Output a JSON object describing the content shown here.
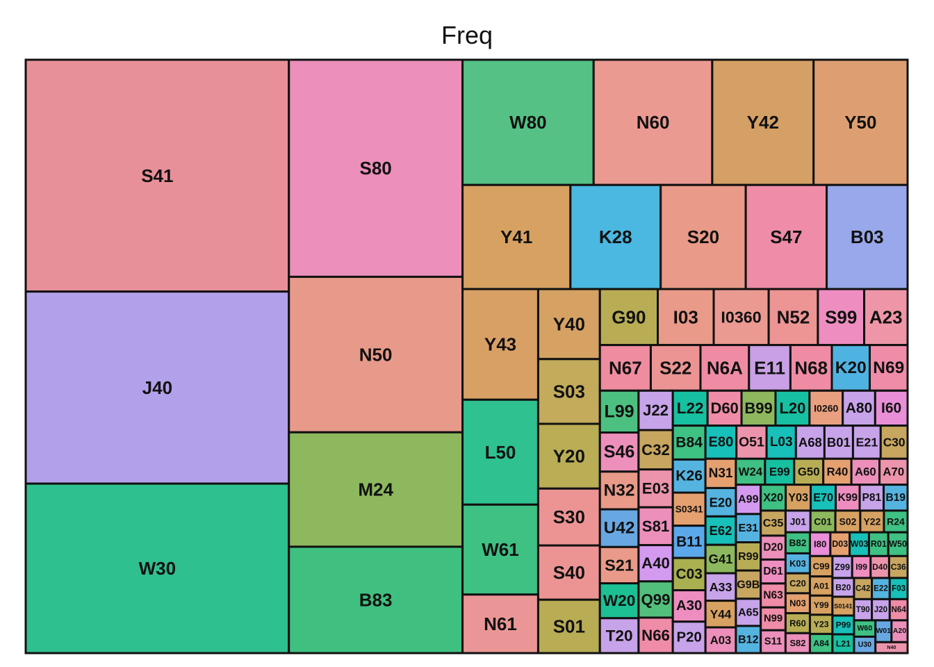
{
  "chart_data": {
    "type": "treemap",
    "title": "Freq",
    "items": [
      {
        "label": "S41",
        "value": 113000,
        "color": "#e8909a"
      },
      {
        "label": "J40",
        "value": 93600,
        "color": "#b3a0ea"
      },
      {
        "label": "W30",
        "value": 82600,
        "color": "#2fc08f"
      },
      {
        "label": "S80",
        "value": 69800,
        "color": "#ec8fba"
      },
      {
        "label": "N50",
        "value": 50000,
        "color": "#e89a8a"
      },
      {
        "label": "M24",
        "value": 36800,
        "color": "#8db85e"
      },
      {
        "label": "B83",
        "value": 34200,
        "color": "#40c080"
      },
      {
        "label": "W80",
        "value": 30400,
        "color": "#55c185"
      },
      {
        "label": "N60",
        "value": 27500,
        "color": "#eb9a92"
      },
      {
        "label": "Y42",
        "value": 23500,
        "color": "#d5a065"
      },
      {
        "label": "Y50",
        "value": 21800,
        "color": "#dd9f72"
      },
      {
        "label": "Y41",
        "value": 20800,
        "color": "#d7a162"
      },
      {
        "label": "K28",
        "value": 17400,
        "color": "#4ab8e0"
      },
      {
        "label": "S20",
        "value": 16400,
        "color": "#e99a88"
      },
      {
        "label": "Y43",
        "value": 15500,
        "color": "#d9a066"
      },
      {
        "label": "S47",
        "value": 15600,
        "color": "#ef8ca8"
      },
      {
        "label": "B03",
        "value": 15600,
        "color": "#98a8ea"
      },
      {
        "label": "L50",
        "value": 14700,
        "color": "#2fc190"
      },
      {
        "label": "W61",
        "value": 12600,
        "color": "#3ec183"
      },
      {
        "label": "N61",
        "value": 8200,
        "color": "#eb9696"
      },
      {
        "label": "Y40",
        "value": 8000,
        "color": "#d5a263"
      },
      {
        "label": "S03",
        "value": 7400,
        "color": "#c3ab5b"
      },
      {
        "label": "Y20",
        "value": 7400,
        "color": "#b9ad55"
      },
      {
        "label": "S30",
        "value": 6500,
        "color": "#ec9494"
      },
      {
        "label": "S01",
        "value": 6100,
        "color": "#b8ad55"
      },
      {
        "label": "S40",
        "value": 6200,
        "color": "#ec9494"
      },
      {
        "label": "G90",
        "value": 6000,
        "color": "#b8ad55"
      },
      {
        "label": "I03",
        "value": 5800,
        "color": "#e99a88"
      },
      {
        "label": "I0360",
        "value": 5700,
        "color": "#eb9a92"
      },
      {
        "label": "N52",
        "value": 5100,
        "color": "#ed9494"
      },
      {
        "label": "S99",
        "value": 4800,
        "color": "#ee8dc0"
      },
      {
        "label": "A23",
        "value": 4500,
        "color": "#ee96a8"
      },
      {
        "label": "S22",
        "value": 4200,
        "color": "#ec9494"
      },
      {
        "label": "N67",
        "value": 4300,
        "color": "#ef8ca0"
      },
      {
        "label": "N6A",
        "value": 4100,
        "color": "#ef8ca4"
      },
      {
        "label": "E11",
        "value": 3500,
        "color": "#c9a0e5"
      },
      {
        "label": "N68",
        "value": 3500,
        "color": "#ef8ca4"
      },
      {
        "label": "K20",
        "value": 3200,
        "color": "#4fb3e2"
      },
      {
        "label": "N69",
        "value": 3200,
        "color": "#ef8ca8"
      },
      {
        "label": "L99",
        "value": 3000,
        "color": "#4cc080"
      },
      {
        "label": "S46",
        "value": 2800,
        "color": "#ec8fba"
      },
      {
        "label": "N32",
        "value": 2700,
        "color": "#e99a88"
      },
      {
        "label": "U42",
        "value": 2700,
        "color": "#68a8e2"
      },
      {
        "label": "S21",
        "value": 2600,
        "color": "#e99a88"
      },
      {
        "label": "W20",
        "value": 2500,
        "color": "#1cc093"
      },
      {
        "label": "T20",
        "value": 2500,
        "color": "#c7a3ea"
      },
      {
        "label": "J22",
        "value": 2500,
        "color": "#c7a3ea"
      },
      {
        "label": "C32",
        "value": 2500,
        "color": "#c7a660"
      },
      {
        "label": "E03",
        "value": 2400,
        "color": "#ec94ac"
      },
      {
        "label": "S81",
        "value": 2400,
        "color": "#ec8fba"
      },
      {
        "label": "A40",
        "value": 2300,
        "color": "#d49af0"
      },
      {
        "label": "Q99",
        "value": 2300,
        "color": "#52c07c"
      },
      {
        "label": "N66",
        "value": 2250,
        "color": "#ef8ca8"
      },
      {
        "label": "L22",
        "value": 2250,
        "color": "#17c0a0"
      },
      {
        "label": "D60",
        "value": 2200,
        "color": "#ef8ca8"
      },
      {
        "label": "B99",
        "value": 2200,
        "color": "#8db85e"
      },
      {
        "label": "L20",
        "value": 2200,
        "color": "#17c0a0"
      },
      {
        "label": "I0260",
        "value": 2150,
        "color": "#e9a080"
      },
      {
        "label": "A80",
        "value": 2100,
        "color": "#c7a3ea"
      },
      {
        "label": "I60",
        "value": 2100,
        "color": "#e88fd8"
      },
      {
        "label": "B84",
        "value": 2050,
        "color": "#3ec183"
      },
      {
        "label": "K26",
        "value": 2000,
        "color": "#55b3e0"
      },
      {
        "label": "S0341",
        "value": 2000,
        "color": "#e5a070"
      },
      {
        "label": "B11",
        "value": 1950,
        "color": "#5ba8ea"
      },
      {
        "label": "C03",
        "value": 1950,
        "color": "#a8b050"
      },
      {
        "label": "A30",
        "value": 1900,
        "color": "#ee8dc0"
      },
      {
        "label": "P20",
        "value": 1900,
        "color": "#c7a3ea"
      },
      {
        "label": "E80",
        "value": 1900,
        "color": "#17c0b8"
      },
      {
        "label": "O51",
        "value": 1850,
        "color": "#ec94ac"
      },
      {
        "label": "L03",
        "value": 1800,
        "color": "#17c0b8"
      },
      {
        "label": "A68",
        "value": 1750,
        "color": "#c7a3ea"
      },
      {
        "label": "B01",
        "value": 1750,
        "color": "#c7a3ea"
      },
      {
        "label": "E21",
        "value": 1700,
        "color": "#c7a3ea"
      },
      {
        "label": "C30",
        "value": 1650,
        "color": "#c7a660"
      },
      {
        "label": "N31",
        "value": 1650,
        "color": "#e5a070"
      },
      {
        "label": "E20",
        "value": 1600,
        "color": "#55b3e0"
      },
      {
        "label": "E62",
        "value": 1600,
        "color": "#17c0b8"
      },
      {
        "label": "G41",
        "value": 1600,
        "color": "#8db85e"
      },
      {
        "label": "A33",
        "value": 1550,
        "color": "#c7a3ea"
      },
      {
        "label": "Y44",
        "value": 1500,
        "color": "#d7a162"
      },
      {
        "label": "A03",
        "value": 1450,
        "color": "#ec8fba"
      },
      {
        "label": "W24",
        "value": 1400,
        "color": "#3ec183"
      },
      {
        "label": "E99",
        "value": 1400,
        "color": "#17c0a0"
      },
      {
        "label": "G50",
        "value": 1400,
        "color": "#b8ad55"
      },
      {
        "label": "R40",
        "value": 1350,
        "color": "#e5a070"
      },
      {
        "label": "A60",
        "value": 1350,
        "color": "#ec8fba"
      },
      {
        "label": "A70",
        "value": 1350,
        "color": "#ec94ac"
      },
      {
        "label": "A99",
        "value": 1350,
        "color": "#d49af0"
      },
      {
        "label": "E31",
        "value": 1300,
        "color": "#55b3e0"
      },
      {
        "label": "R99",
        "value": 1300,
        "color": "#b8ad55"
      },
      {
        "label": "G9B",
        "value": 1300,
        "color": "#c7a660"
      },
      {
        "label": "A65",
        "value": 1250,
        "color": "#c7a3ea"
      },
      {
        "label": "B12",
        "value": 1250,
        "color": "#55b3e0"
      },
      {
        "label": "X20",
        "value": 1200,
        "color": "#3ec183"
      },
      {
        "label": "Y03",
        "value": 1200,
        "color": "#d7a162"
      },
      {
        "label": "E70",
        "value": 1200,
        "color": "#17c0b8"
      },
      {
        "label": "K99",
        "value": 1150,
        "color": "#ee8dc0"
      },
      {
        "label": "P81",
        "value": 1150,
        "color": "#c7a3ea"
      },
      {
        "label": "B19",
        "value": 1150,
        "color": "#55b3e0"
      },
      {
        "label": "C35",
        "value": 1150,
        "color": "#c7a660"
      },
      {
        "label": "D20",
        "value": 1100,
        "color": "#ec8fba"
      },
      {
        "label": "D61",
        "value": 1100,
        "color": "#ee8dc0"
      },
      {
        "label": "N63",
        "value": 1100,
        "color": "#ef8ca8"
      },
      {
        "label": "N99",
        "value": 1050,
        "color": "#ef8ca8"
      },
      {
        "label": "S11",
        "value": 1050,
        "color": "#ec8fba"
      },
      {
        "label": "J01",
        "value": 1000,
        "color": "#c7a3ea"
      },
      {
        "label": "C01",
        "value": 1000,
        "color": "#8db85e"
      },
      {
        "label": "Y22",
        "value": 950,
        "color": "#d7a162"
      },
      {
        "label": "S02",
        "value": 1000,
        "color": "#d7a162"
      },
      {
        "label": "R24",
        "value": 950,
        "color": "#3ec183"
      },
      {
        "label": "B82",
        "value": 950,
        "color": "#3ec183"
      },
      {
        "label": "K03",
        "value": 900,
        "color": "#55b3e0"
      },
      {
        "label": "C20",
        "value": 900,
        "color": "#c7a660"
      },
      {
        "label": "N03",
        "value": 900,
        "color": "#e5a070"
      },
      {
        "label": "R60",
        "value": 900,
        "color": "#b8ad55"
      },
      {
        "label": "S82",
        "value": 900,
        "color": "#ec8fba"
      },
      {
        "label": "I80",
        "value": 900,
        "color": "#e88fd8"
      },
      {
        "label": "D03",
        "value": 850,
        "color": "#e5a070"
      },
      {
        "label": "W03",
        "value": 850,
        "color": "#17c0b8"
      },
      {
        "label": "R01",
        "value": 850,
        "color": "#3ec183"
      },
      {
        "label": "W50",
        "value": 850,
        "color": "#3ec183"
      },
      {
        "label": "A01",
        "value": 800,
        "color": "#d7a162"
      },
      {
        "label": "C99",
        "value": 850,
        "color": "#d7a162"
      },
      {
        "label": "Y99",
        "value": 800,
        "color": "#d7a162"
      },
      {
        "label": "Y23",
        "value": 800,
        "color": "#b8ad55"
      },
      {
        "label": "A84",
        "value": 800,
        "color": "#3ec183"
      },
      {
        "label": "I99",
        "value": 750,
        "color": "#ee8dc0"
      },
      {
        "label": "Z99",
        "value": 800,
        "color": "#c7a3ea"
      },
      {
        "label": "D40",
        "value": 750,
        "color": "#ec94ac"
      },
      {
        "label": "C36",
        "value": 750,
        "color": "#c7a660"
      },
      {
        "label": "B20",
        "value": 750,
        "color": "#c7a3ea"
      },
      {
        "label": "S0141",
        "value": 750,
        "color": "#d7a162"
      },
      {
        "label": "P99",
        "value": 750,
        "color": "#17c0b8"
      },
      {
        "label": "C42",
        "value": 700,
        "color": "#c7a660"
      },
      {
        "label": "E22",
        "value": 700,
        "color": "#55b3e0"
      },
      {
        "label": "F03",
        "value": 700,
        "color": "#17c0b8"
      },
      {
        "label": "L21",
        "value": 750,
        "color": "#17c0a0"
      },
      {
        "label": "T90",
        "value": 700,
        "color": "#c7a3ea"
      },
      {
        "label": "J20",
        "value": 700,
        "color": "#c7a3ea"
      },
      {
        "label": "W60",
        "value": 650,
        "color": "#3ec183"
      },
      {
        "label": "N64",
        "value": 700,
        "color": "#ef8ca8"
      },
      {
        "label": "U30",
        "value": 650,
        "color": "#68a8e2"
      },
      {
        "label": "W01",
        "value": 650,
        "color": "#68a8e2"
      },
      {
        "label": "A20",
        "value": 650,
        "color": "#ec8fba"
      },
      {
        "label": "N40",
        "value": 650,
        "color": "#ec94ac"
      }
    ]
  }
}
